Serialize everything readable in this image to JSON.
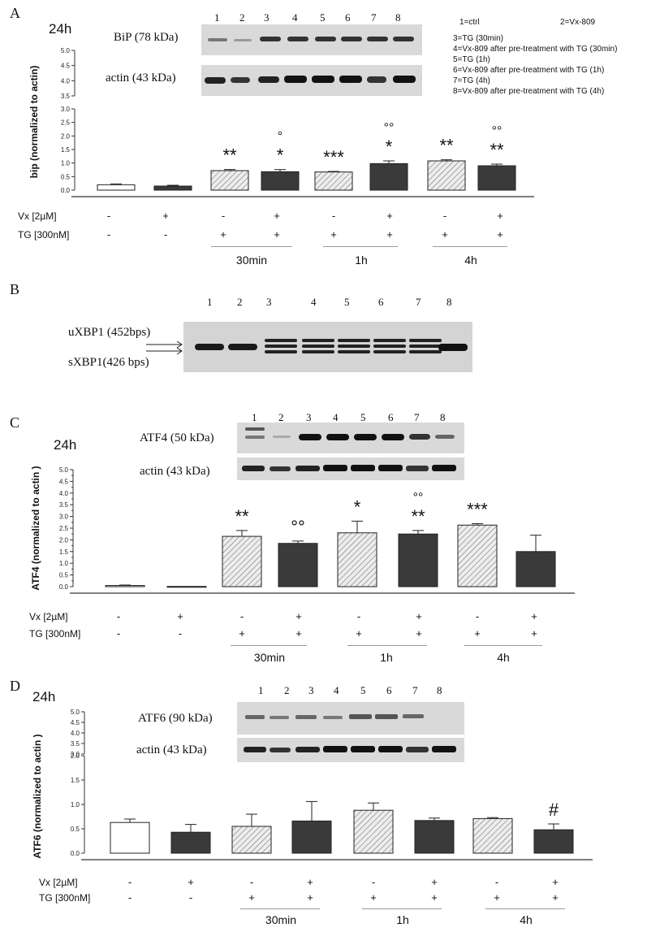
{
  "legend": [
    "1=ctrl",
    "2=Vx-809",
    "3=TG (30min)",
    "4=Vx-809 after pre-treatment with TG (30min)",
    "5=TG (1h)",
    "6=Vx-809 after pre-treatment with TG (1h)",
    "7=TG (4h)",
    "8=Vx-809 after pre-treatment with TG (4h)"
  ],
  "lanes": [
    "1",
    "2",
    "3",
    "4",
    "5",
    "6",
    "7",
    "8"
  ],
  "conditions": {
    "vx_label": "Vx  [2µM]",
    "tg_label": "TG  [300nM]",
    "vx": [
      "-",
      "+",
      "-",
      "+",
      "-",
      "+",
      "-",
      "+"
    ],
    "tg": [
      "-",
      "-",
      "+",
      "+",
      "+",
      "+",
      "+",
      "+"
    ],
    "groups": [
      "30min",
      "1h",
      "4h"
    ]
  },
  "colors": {
    "control_fill": "#ffffff",
    "vx_fill": "#3a3a3a",
    "tg_hatch": "#777777",
    "axis": "#333333"
  },
  "panels": {
    "A": {
      "letter": "A",
      "time": "24h",
      "blots": [
        "BiP (78 kDa)",
        "actin (43 kDa)"
      ]
    },
    "B": {
      "letter": "B",
      "lanes": [
        "1",
        "2",
        "3",
        "4",
        "5",
        "6",
        "7",
        "8"
      ],
      "labels": [
        "uXBP1 (452bps)",
        "sXBP1(426 bps)"
      ]
    },
    "C": {
      "letter": "C",
      "time": "24h",
      "blots": [
        "ATF4 (50 kDa)",
        "actin (43 kDa)"
      ]
    },
    "D": {
      "letter": "D",
      "time": "24h",
      "blots": [
        "ATF6 (90 kDa)",
        "actin (43 kDa)"
      ]
    }
  },
  "chart_data": [
    {
      "panel": "A",
      "type": "bar",
      "ylabel": "bip (normalized to actin)",
      "ylim": [
        0,
        5.0
      ],
      "axis_break": [
        3.0,
        3.5
      ],
      "yticks": [
        "0.0",
        "0.5",
        "1.0",
        "1.5",
        "2.0",
        "2.5",
        "3.0",
        "3.5",
        "4.0",
        "4.5",
        "5.0"
      ],
      "categories": [
        "1",
        "2",
        "3",
        "4",
        "5",
        "6",
        "7",
        "8"
      ],
      "values": [
        0.2,
        0.15,
        0.72,
        0.68,
        0.67,
        0.98,
        1.08,
        0.9
      ],
      "errors": [
        0.03,
        0.03,
        0.04,
        0.08,
        0.02,
        0.1,
        0.04,
        0.06
      ],
      "fills": [
        "open",
        "dark",
        "hatched",
        "dark",
        "hatched",
        "dark",
        "hatched",
        "dark"
      ],
      "significance_top": [
        "",
        "",
        "",
        "°",
        "",
        "°°",
        "",
        "°°"
      ],
      "significance": [
        "",
        "",
        "**",
        "*",
        "***",
        "*",
        "**",
        "**"
      ]
    },
    {
      "panel": "C",
      "type": "bar",
      "ylabel": "ATF4 (normalized to actin )",
      "ylim": [
        0,
        5.0
      ],
      "yticks": [
        "0.0",
        "0.25",
        "0.5",
        "0.75",
        "1.0",
        "1.25",
        "1.5",
        "1.75",
        "2.0",
        "2.25",
        "2.5",
        "2.75",
        "3.0",
        "3.25",
        "3.5",
        "3.75",
        "4.0",
        "4.25",
        "4.5",
        "4.75",
        "5.0"
      ],
      "ytick_labels": [
        "0.0",
        "0.5",
        "1.0",
        "1.5",
        "2.0",
        "2.5",
        "3.0",
        "3.5",
        "4.0",
        "4.5",
        "5.0"
      ],
      "categories": [
        "1",
        "2",
        "3",
        "4",
        "5",
        "6",
        "7",
        "8"
      ],
      "values": [
        0.05,
        0.01,
        2.15,
        1.85,
        2.3,
        2.25,
        2.63,
        1.5
      ],
      "errors": [
        0.02,
        0.01,
        0.25,
        0.1,
        0.5,
        0.15,
        0.06,
        0.7
      ],
      "fills": [
        "open",
        "dark",
        "hatched",
        "dark",
        "hatched",
        "dark",
        "hatched",
        "dark"
      ],
      "significance_top": [
        "",
        "",
        "",
        "",
        "",
        "°°",
        "",
        ""
      ],
      "significance": [
        "",
        "",
        "**",
        "°°",
        "*",
        "**",
        "***",
        ""
      ]
    },
    {
      "panel": "D",
      "type": "bar",
      "ylabel": "ATF6 (normalized to actin )",
      "ylim": [
        0,
        5.0
      ],
      "axis_break": [
        2.0,
        3.0
      ],
      "yticks": [
        "0.0",
        "0.5",
        "1.0",
        "1.5",
        "2.0",
        "3.0",
        "3.5",
        "4.0",
        "4.5",
        "5.0"
      ],
      "categories": [
        "1",
        "2",
        "3",
        "4",
        "5",
        "6",
        "7",
        "8"
      ],
      "values": [
        0.63,
        0.43,
        0.55,
        0.66,
        0.88,
        0.67,
        0.71,
        0.48
      ],
      "errors": [
        0.07,
        0.16,
        0.25,
        0.4,
        0.15,
        0.05,
        0.02,
        0.12
      ],
      "fills": [
        "open",
        "dark",
        "hatched",
        "dark",
        "hatched",
        "dark",
        "hatched",
        "dark"
      ],
      "significance_top": [
        "",
        "",
        "",
        "",
        "",
        "",
        "",
        ""
      ],
      "significance": [
        "",
        "",
        "",
        "",
        "",
        "",
        "",
        "#"
      ]
    }
  ]
}
